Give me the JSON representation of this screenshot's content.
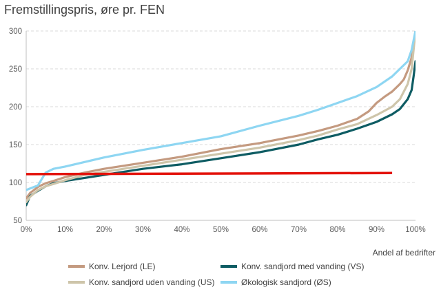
{
  "chart_data": {
    "type": "line",
    "title": "Fremstillingspris, øre pr. FEN",
    "xlabel": "Andel af bedrifter",
    "ylabel": "",
    "xlim": [
      0,
      100
    ],
    "ylim": [
      50,
      300
    ],
    "x_ticks": [
      0,
      10,
      20,
      30,
      40,
      50,
      60,
      70,
      80,
      90,
      100
    ],
    "x_tick_labels": [
      "0%",
      "10%",
      "20%",
      "30%",
      "40%",
      "50%",
      "60%",
      "70%",
      "80%",
      "90%",
      "100%"
    ],
    "y_ticks": [
      50,
      100,
      150,
      200,
      250,
      300
    ],
    "y_tick_labels": [
      "50",
      "100",
      "150",
      "200",
      "250",
      "300"
    ],
    "grid": "horizontal-dashed",
    "legend": "bottom",
    "series": [
      {
        "name": "Konv. Lerjord (LE)",
        "color": "#c49a80",
        "x": [
          0,
          1,
          3,
          5,
          7,
          10,
          15,
          20,
          25,
          30,
          40,
          50,
          60,
          70,
          75,
          80,
          85,
          88,
          90,
          92,
          94,
          96,
          97,
          98,
          99,
          100
        ],
        "y": [
          79,
          86,
          94,
          99,
          102,
          107,
          113,
          118,
          122,
          126,
          134,
          144,
          152,
          162,
          168,
          175,
          184,
          194,
          205,
          213,
          220,
          230,
          236,
          248,
          265,
          300
        ]
      },
      {
        "name": "Konv. sandjord med vanding (VS)",
        "color": "#0e5c63",
        "x": [
          0,
          0.5,
          1,
          3,
          5,
          7,
          10,
          15,
          20,
          25,
          30,
          40,
          50,
          60,
          70,
          75,
          80,
          85,
          90,
          94,
          96,
          98,
          99,
          99.5,
          100
        ],
        "y": [
          70,
          76,
          82,
          89,
          95,
          99,
          102,
          106,
          110,
          114,
          118,
          124,
          132,
          140,
          150,
          157,
          163,
          171,
          180,
          190,
          197,
          210,
          222,
          240,
          260
        ]
      },
      {
        "name": "Konv. sandjord uden vanding (US)",
        "color": "#cec5aa",
        "x": [
          0,
          1,
          3,
          5,
          7,
          10,
          15,
          20,
          25,
          30,
          40,
          50,
          60,
          70,
          75,
          80,
          85,
          90,
          94,
          96,
          98,
          99,
          100
        ],
        "y": [
          74,
          81,
          90,
          95,
          98,
          103,
          110,
          114,
          118,
          122,
          130,
          138,
          146,
          156,
          162,
          170,
          177,
          189,
          200,
          210,
          230,
          250,
          300
        ]
      },
      {
        "name": "Økologisk sandjord (ØS)",
        "color": "#8ed6f2",
        "x": [
          0,
          1,
          3,
          5,
          7,
          10,
          15,
          20,
          25,
          30,
          40,
          50,
          60,
          70,
          75,
          80,
          85,
          90,
          94,
          96,
          98,
          99,
          100
        ],
        "y": [
          90,
          92,
          96,
          113,
          118,
          121,
          127,
          133,
          138,
          143,
          152,
          161,
          175,
          188,
          196,
          205,
          214,
          226,
          240,
          250,
          260,
          275,
          300
        ]
      }
    ],
    "reference_line": {
      "color": "#e3120b",
      "x": [
        0,
        94
      ],
      "y": [
        111,
        112.5
      ]
    }
  }
}
